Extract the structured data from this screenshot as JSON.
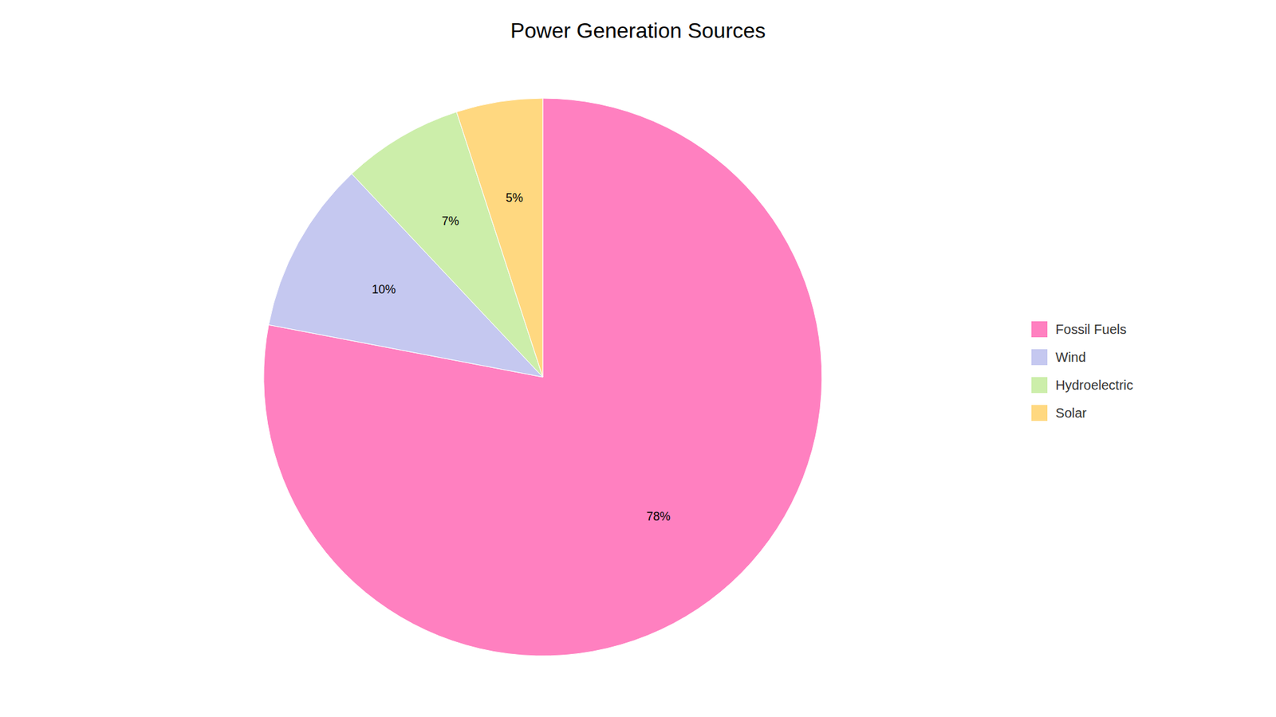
{
  "chart_data": {
    "type": "pie",
    "title": "Power Generation Sources",
    "categories": [
      "Fossil Fuels",
      "Wind",
      "Hydroelectric",
      "Solar"
    ],
    "values": [
      78,
      10,
      7,
      5
    ],
    "value_labels": [
      "78%",
      "10%",
      "7%",
      "5%"
    ],
    "colors": [
      "#FF80C0",
      "#C5C8F0",
      "#CCEEAA",
      "#FFD880"
    ],
    "data_labels": true,
    "legend": "right"
  }
}
